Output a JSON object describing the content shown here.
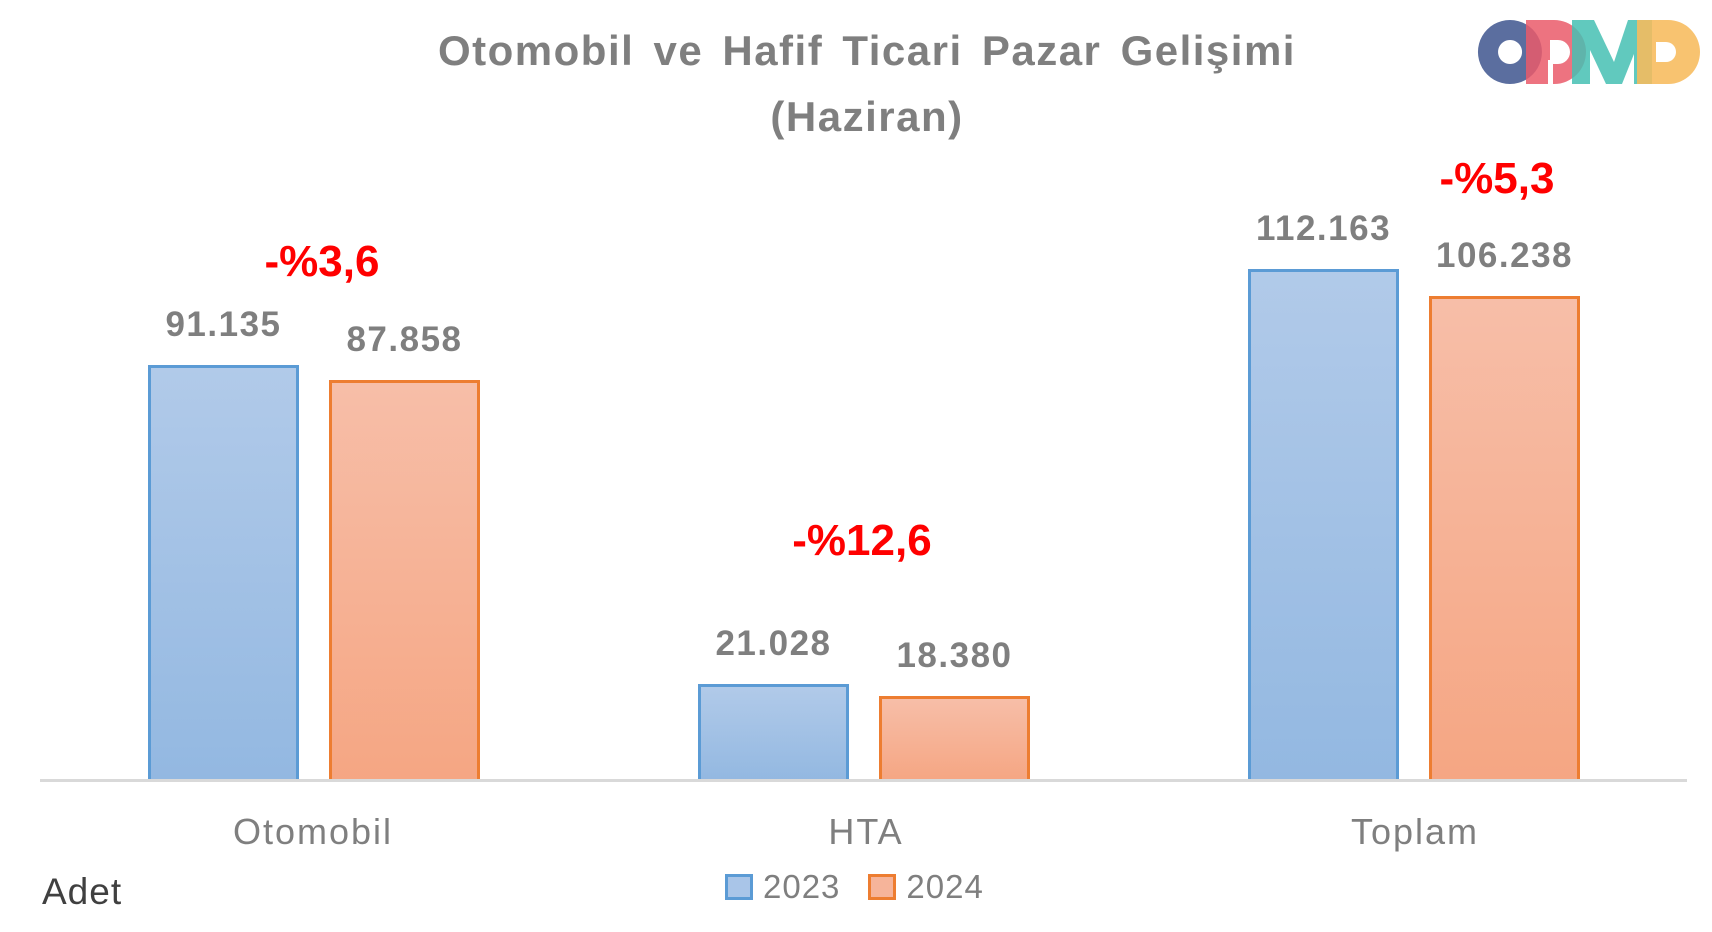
{
  "header": {
    "title_line1": "Otomobil ve Hafif Ticari Pazar Gelişimi",
    "title_line2": "(Haziran)",
    "logo_text": "ODMD",
    "logo_colors": {
      "O": "#5b6e9f",
      "D1": "#ea5a6a",
      "M": "#45c0b3",
      "D2": "#f7bb5c"
    }
  },
  "chart_data": {
    "type": "bar",
    "title": "Otomobil ve Hafif Ticari Pazar Gelişimi (Haziran)",
    "categories": [
      "Otomobil",
      "HTA",
      "Toplam"
    ],
    "series": [
      {
        "name": "2023",
        "values": [
          91135,
          21028,
          112163
        ],
        "labels": [
          "91.135",
          "21.028",
          "112.163"
        ],
        "color": "#5b9bd5"
      },
      {
        "name": "2024",
        "values": [
          87858,
          18380,
          106238
        ],
        "labels": [
          "87.858",
          "18.380",
          "106.238"
        ],
        "color": "#ed7d31"
      }
    ],
    "annotations": [
      {
        "category": "Otomobil",
        "text": "-%3,6",
        "color": "#ff0000"
      },
      {
        "category": "HTA",
        "text": "-%12,6",
        "color": "#ff0000"
      },
      {
        "category": "Toplam",
        "text": "-%5,3",
        "color": "#ff0000"
      }
    ],
    "xlabel": "",
    "ylabel": "Adet",
    "ylim": [
      0,
      112163
    ],
    "grid": false,
    "legend_position": "bottom"
  },
  "legend": [
    {
      "label": "2023"
    },
    {
      "label": "2024"
    }
  ],
  "unit_label": "Adet"
}
